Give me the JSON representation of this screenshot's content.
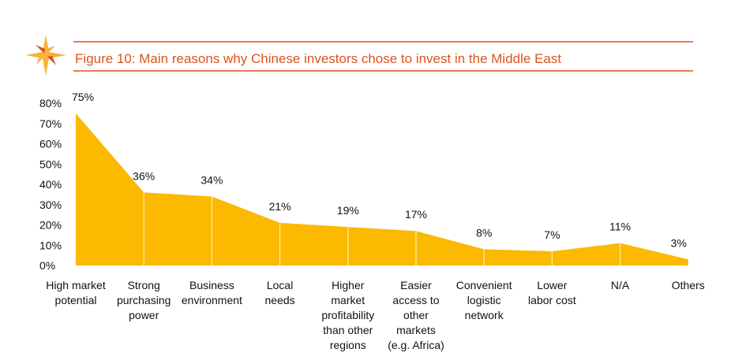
{
  "header": {
    "title": "Figure 10: Main reasons why Chinese investors chose to invest in the Middle East"
  },
  "colors": {
    "accent": "#d9541e",
    "area": "#fbb900",
    "logo_light": "#f6b23a",
    "logo_dark": "#d9541e"
  },
  "chart_data": {
    "type": "area",
    "categories": [
      [
        "High market",
        "potential"
      ],
      [
        "Strong",
        "purchasing",
        "power"
      ],
      [
        "Business",
        "environment"
      ],
      [
        "Local",
        "needs"
      ],
      [
        "Higher",
        "market",
        "profitability",
        "than other",
        "regions"
      ],
      [
        "Easier",
        "access to",
        "other",
        "markets",
        "(e.g. Africa)"
      ],
      [
        "Convenient",
        "logistic",
        "network"
      ],
      [
        "Lower",
        "labor cost"
      ],
      [
        "N/A"
      ],
      [
        "Others"
      ]
    ],
    "values": [
      75,
      36,
      34,
      21,
      19,
      17,
      8,
      7,
      11,
      3
    ],
    "data_labels": [
      "75%",
      "36%",
      "34%",
      "21%",
      "19%",
      "17%",
      "8%",
      "7%",
      "11%",
      "3%"
    ],
    "yticks": [
      "0%",
      "10%",
      "20%",
      "30%",
      "40%",
      "50%",
      "60%",
      "70%",
      "80%"
    ],
    "ylim": [
      0,
      80
    ],
    "grid": false,
    "legend": "none"
  }
}
